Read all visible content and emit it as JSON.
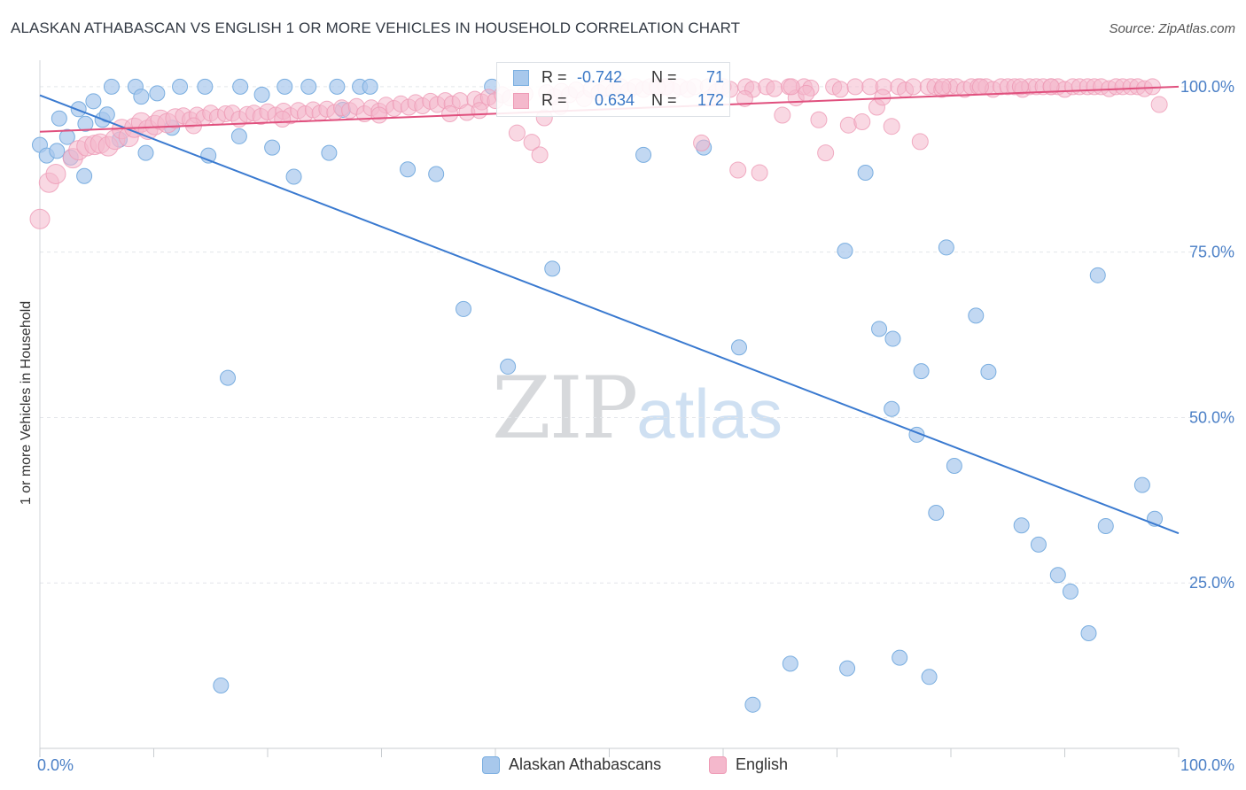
{
  "title": "ALASKAN ATHABASCAN VS ENGLISH 1 OR MORE VEHICLES IN HOUSEHOLD CORRELATION CHART",
  "source": "Source: ZipAtlas.com",
  "watermark": {
    "zip": "ZIP",
    "atlas": "atlas"
  },
  "legend": {
    "r_label": "R =",
    "n_label": "N =",
    "rows": [
      {
        "r": "-0.742",
        "n": "71"
      },
      {
        "r": "0.634",
        "n": "172"
      }
    ]
  },
  "colors": {
    "blue_fill": "#a8c8ec",
    "blue_stroke": "#7aaee0",
    "blue_line": "#3a7ad0",
    "pink_fill": "#f4b8cc",
    "pink_stroke": "#ee9ab5",
    "pink_line": "#e0507e",
    "value_text": "#3a78c6",
    "tick_text": "#4a7fc6"
  },
  "chart_data": {
    "type": "scatter",
    "title": "ALASKAN ATHABASCAN VS ENGLISH 1 OR MORE VEHICLES IN HOUSEHOLD CORRELATION CHART",
    "ylabel": "1 or more Vehicles in Household",
    "xlabel": "",
    "xlim": [
      0,
      100
    ],
    "ylim": [
      0,
      104
    ],
    "x_tick_labels": [
      "0.0%",
      "100.0%"
    ],
    "y_tick_labels": [
      "25.0%",
      "50.0%",
      "75.0%",
      "100.0%"
    ],
    "y_ticks": [
      25,
      50,
      75,
      100
    ],
    "grid": true,
    "legend_placement": "bottom",
    "series": [
      {
        "name": "Alaskan Athabascans",
        "r": -0.742,
        "n": 71,
        "trend": {
          "x": [
            0,
            100
          ],
          "y": [
            98.7,
            32.5
          ]
        },
        "points": [
          [
            0,
            91.2
          ],
          [
            0.6,
            89.6
          ],
          [
            1.5,
            90.3
          ],
          [
            1.7,
            95.2
          ],
          [
            2.4,
            92.4
          ],
          [
            2.7,
            89.3
          ],
          [
            3.4,
            96.6
          ],
          [
            3.9,
            86.5
          ],
          [
            4,
            94.4
          ],
          [
            4.7,
            97.8
          ],
          [
            5.5,
            95
          ],
          [
            5.9,
            95.8
          ],
          [
            6.3,
            100
          ],
          [
            7,
            92
          ],
          [
            8.4,
            100
          ],
          [
            8.9,
            98.5
          ],
          [
            9.3,
            90
          ],
          [
            10.3,
            99
          ],
          [
            11.6,
            93.8
          ],
          [
            12.3,
            100
          ],
          [
            14.5,
            100
          ],
          [
            14.8,
            89.6
          ],
          [
            16.5,
            56
          ],
          [
            17.5,
            92.5
          ],
          [
            17.6,
            100
          ],
          [
            19.5,
            98.8
          ],
          [
            20.4,
            90.8
          ],
          [
            21.5,
            100
          ],
          [
            22.3,
            86.4
          ],
          [
            23.6,
            100
          ],
          [
            25.4,
            90
          ],
          [
            26.1,
            100
          ],
          [
            26.6,
            96.5
          ],
          [
            28.1,
            100
          ],
          [
            29,
            100
          ],
          [
            32.3,
            87.5
          ],
          [
            34.8,
            86.8
          ],
          [
            37.2,
            66.4
          ],
          [
            39.7,
            100
          ],
          [
            41.1,
            57.7
          ],
          [
            45,
            72.5
          ],
          [
            53,
            89.7
          ],
          [
            58.3,
            90.8
          ],
          [
            61.4,
            60.6
          ],
          [
            62.6,
            6.6
          ],
          [
            65.9,
            12.8
          ],
          [
            70.7,
            75.2
          ],
          [
            70.9,
            12.1
          ],
          [
            72.5,
            87
          ],
          [
            73.7,
            63.4
          ],
          [
            74.8,
            51.3
          ],
          [
            74.9,
            61.9
          ],
          [
            75.5,
            13.7
          ],
          [
            77,
            47.4
          ],
          [
            77.4,
            57
          ],
          [
            78.1,
            10.8
          ],
          [
            78.7,
            35.6
          ],
          [
            79.6,
            75.7
          ],
          [
            80.3,
            42.7
          ],
          [
            82.2,
            65.4
          ],
          [
            83.3,
            56.9
          ],
          [
            86.2,
            33.7
          ],
          [
            87.7,
            30.8
          ],
          [
            89.4,
            26.2
          ],
          [
            90.5,
            23.7
          ],
          [
            92.1,
            17.4
          ],
          [
            92.9,
            71.5
          ],
          [
            93.6,
            33.6
          ],
          [
            96.8,
            39.8
          ],
          [
            97.9,
            34.7
          ],
          [
            15.9,
            9.5
          ]
        ]
      },
      {
        "name": "English",
        "r": 0.634,
        "n": 172,
        "trend": {
          "x": [
            0,
            100
          ],
          "y": [
            93.2,
            100
          ]
        },
        "points": [
          [
            0,
            80
          ],
          [
            0.8,
            85.5
          ],
          [
            1.4,
            86.8
          ],
          [
            2.9,
            89.2
          ],
          [
            3.4,
            90.4
          ],
          [
            4.1,
            91
          ],
          [
            4.8,
            91.2
          ],
          [
            5.3,
            91.4
          ],
          [
            6,
            91
          ],
          [
            6.6,
            92
          ],
          [
            7.2,
            93.6
          ],
          [
            7.8,
            92.4
          ],
          [
            8.3,
            93.8
          ],
          [
            8.9,
            94.6
          ],
          [
            9.5,
            93.5
          ],
          [
            10.1,
            94.2
          ],
          [
            10.6,
            95
          ],
          [
            11.2,
            94.5
          ],
          [
            11.9,
            95.2
          ],
          [
            12.6,
            95.6
          ],
          [
            13.2,
            95
          ],
          [
            13.8,
            95.7
          ],
          [
            14.4,
            95.3
          ],
          [
            15,
            96
          ],
          [
            15.6,
            95.4
          ],
          [
            16.3,
            95.9
          ],
          [
            16.9,
            96
          ],
          [
            17.5,
            95.1
          ],
          [
            18.2,
            95.8
          ],
          [
            18.8,
            96
          ],
          [
            19.4,
            95.5
          ],
          [
            20,
            96.2
          ],
          [
            20.7,
            95.7
          ],
          [
            21.4,
            96.3
          ],
          [
            22,
            95.6
          ],
          [
            22.7,
            96.4
          ],
          [
            23.3,
            95.9
          ],
          [
            24,
            96.5
          ],
          [
            24.6,
            96
          ],
          [
            25.2,
            96.6
          ],
          [
            25.9,
            96.1
          ],
          [
            26.5,
            96.8
          ],
          [
            27.2,
            96.4
          ],
          [
            27.8,
            97
          ],
          [
            28.5,
            95.9
          ],
          [
            29.1,
            96.8
          ],
          [
            29.8,
            96.3
          ],
          [
            30.4,
            97.2
          ],
          [
            31.1,
            96.7
          ],
          [
            31.7,
            97.4
          ],
          [
            32.4,
            96.9
          ],
          [
            33,
            97.6
          ],
          [
            33.6,
            97.1
          ],
          [
            34.3,
            97.8
          ],
          [
            34.9,
            97.3
          ],
          [
            35.6,
            97.9
          ],
          [
            36.2,
            97.4
          ],
          [
            36.9,
            97.9
          ],
          [
            37.5,
            96.1
          ],
          [
            38.2,
            98.1
          ],
          [
            38.8,
            97.7
          ],
          [
            39.4,
            98.4
          ],
          [
            40,
            97.9
          ],
          [
            40.6,
            98.8
          ],
          [
            41.3,
            98.3
          ],
          [
            41.9,
            93
          ],
          [
            42.6,
            98.9
          ],
          [
            43.2,
            91.6
          ],
          [
            43.9,
            89.7
          ],
          [
            44.5,
            99.1
          ],
          [
            45.2,
            98.5
          ],
          [
            45.8,
            99.3
          ],
          [
            46.5,
            98.8
          ],
          [
            47.1,
            99.5
          ],
          [
            47.8,
            98.2
          ],
          [
            48.4,
            99.6
          ],
          [
            49.1,
            99.1
          ],
          [
            49.7,
            99.8
          ],
          [
            50.4,
            99.3
          ],
          [
            51,
            100
          ],
          [
            51.7,
            99.4
          ],
          [
            52.3,
            100
          ],
          [
            53,
            99.6
          ],
          [
            53.6,
            100
          ],
          [
            54.3,
            99.7
          ],
          [
            54.9,
            100
          ],
          [
            55.6,
            99.4
          ],
          [
            56.2,
            100
          ],
          [
            56.9,
            99.6
          ],
          [
            57.5,
            100
          ],
          [
            58.1,
            91.5
          ],
          [
            58.7,
            100
          ],
          [
            59.4,
            99.2
          ],
          [
            60,
            100
          ],
          [
            60.6,
            99.6
          ],
          [
            61.3,
            87.4
          ],
          [
            62,
            100
          ],
          [
            62.6,
            99.6
          ],
          [
            63.2,
            87
          ],
          [
            63.8,
            100
          ],
          [
            64.5,
            99.7
          ],
          [
            65.2,
            95.7
          ],
          [
            65.8,
            100
          ],
          [
            66.4,
            98.3
          ],
          [
            67.1,
            100
          ],
          [
            67.7,
            99.8
          ],
          [
            68.4,
            95
          ],
          [
            69,
            90
          ],
          [
            69.7,
            100
          ],
          [
            70.3,
            99.6
          ],
          [
            71,
            94.2
          ],
          [
            71.6,
            100
          ],
          [
            72.2,
            94.7
          ],
          [
            72.9,
            100
          ],
          [
            73.5,
            96.9
          ],
          [
            74.1,
            100
          ],
          [
            74.8,
            94
          ],
          [
            75.4,
            100
          ],
          [
            76,
            99.5
          ],
          [
            76.7,
            100
          ],
          [
            77.3,
            91.7
          ],
          [
            78,
            100
          ],
          [
            78.6,
            100
          ],
          [
            79.2,
            99.6
          ],
          [
            79.9,
            100
          ],
          [
            80.5,
            100
          ],
          [
            81.2,
            99.6
          ],
          [
            81.8,
            100
          ],
          [
            82.4,
            100
          ],
          [
            83.1,
            100
          ],
          [
            83.7,
            99.6
          ],
          [
            84.4,
            100
          ],
          [
            85,
            100
          ],
          [
            85.6,
            100
          ],
          [
            86.3,
            99.6
          ],
          [
            86.9,
            100
          ],
          [
            87.5,
            100
          ],
          [
            88.1,
            100
          ],
          [
            88.8,
            100
          ],
          [
            89.4,
            100
          ],
          [
            90,
            99.6
          ],
          [
            90.7,
            100
          ],
          [
            91.3,
            100
          ],
          [
            92,
            100
          ],
          [
            92.6,
            100
          ],
          [
            93.2,
            100
          ],
          [
            93.9,
            99.7
          ],
          [
            94.5,
            100
          ],
          [
            95.1,
            100
          ],
          [
            95.8,
            100
          ],
          [
            96.4,
            100
          ],
          [
            97,
            99.7
          ],
          [
            97.7,
            100
          ],
          [
            98.3,
            97.3
          ],
          [
            55,
            100
          ],
          [
            66,
            100
          ],
          [
            74,
            98.4
          ],
          [
            45.7,
            97
          ],
          [
            36,
            95.9
          ],
          [
            58.9,
            98.3
          ],
          [
            13.5,
            94.1
          ],
          [
            21.3,
            95.1
          ],
          [
            29.8,
            95.7
          ],
          [
            38.6,
            96.4
          ],
          [
            44.3,
            95.3
          ],
          [
            54.2,
            100
          ],
          [
            61.9,
            98.2
          ],
          [
            67.3,
            99
          ],
          [
            79.3,
            100
          ],
          [
            82.6,
            100
          ],
          [
            86.1,
            100
          ],
          [
            88.8,
            100
          ]
        ]
      }
    ]
  },
  "bottom_legend": [
    {
      "label": "Alaskan Athabascans"
    },
    {
      "label": "English"
    }
  ]
}
